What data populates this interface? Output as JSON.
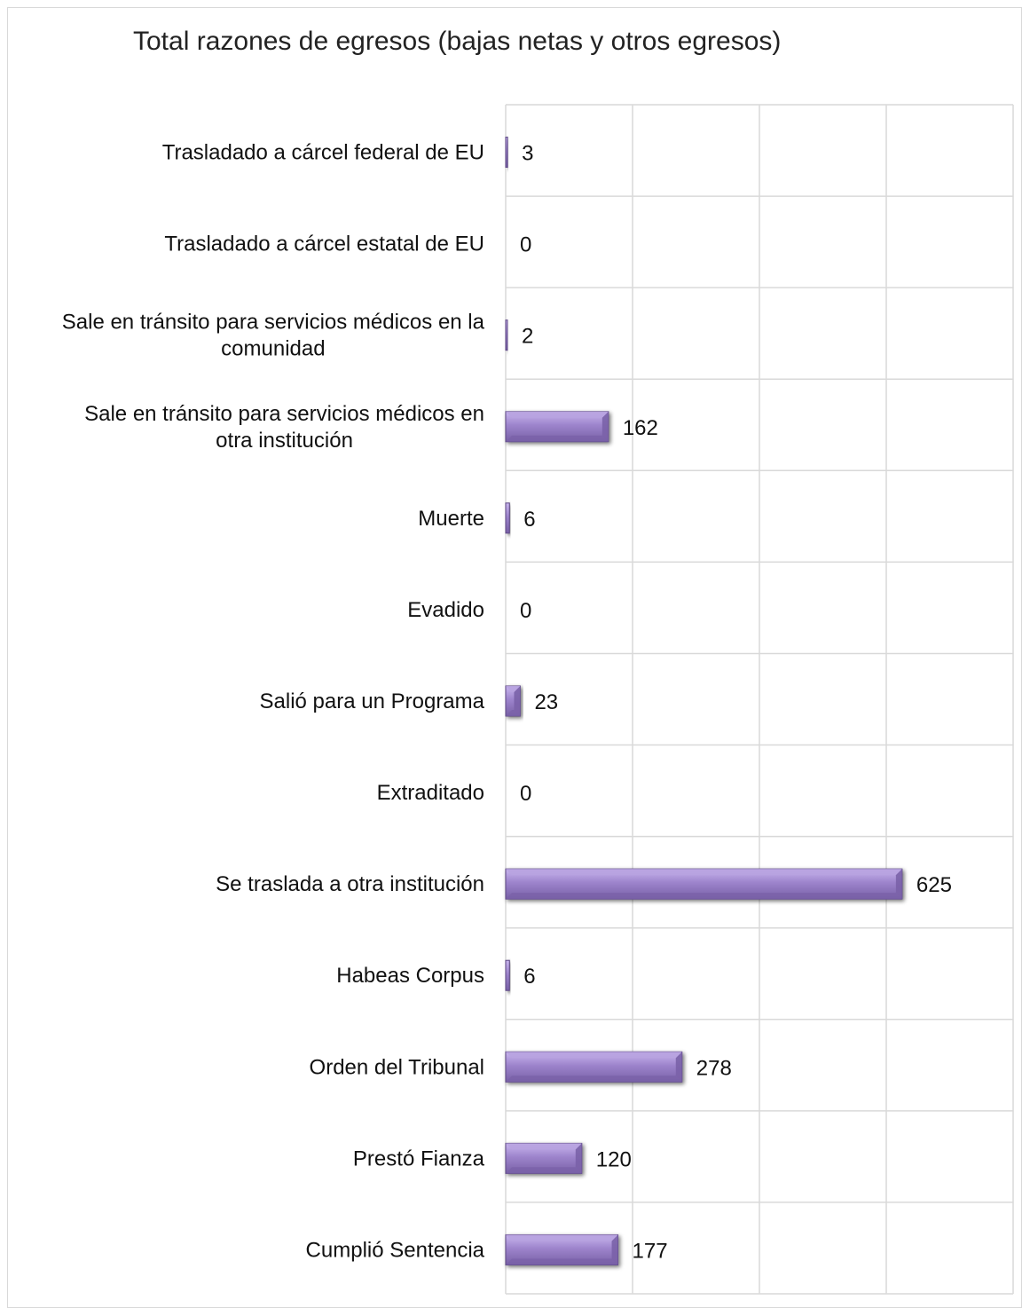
{
  "chart_data": {
    "type": "bar",
    "orientation": "horizontal",
    "title": "Total razones de egresos (bajas netas y otros egresos)",
    "categories": [
      [
        "Trasladado a cárcel federal de EU"
      ],
      [
        "Trasladado a cárcel estatal de EU"
      ],
      [
        "Sale en tránsito para servicios médicos en la",
        "comunidad"
      ],
      [
        "Sale en tránsito para servicios médicos en",
        "otra institución"
      ],
      [
        "Muerte"
      ],
      [
        "Evadido"
      ],
      [
        "Salió para un Programa"
      ],
      [
        "Extraditado"
      ],
      [
        "Se traslada a otra institución"
      ],
      [
        "Habeas Corpus"
      ],
      [
        "Orden del Tribunal"
      ],
      [
        "Prestó Fianza"
      ],
      [
        "Cumplió Sentencia"
      ]
    ],
    "values": [
      3,
      0,
      2,
      162,
      6,
      0,
      23,
      0,
      625,
      6,
      278,
      120,
      177
    ],
    "xlim": [
      0,
      800
    ],
    "grid": true,
    "legend": "none",
    "colors": {
      "bar_top": "#b8a3e0",
      "bar_mid": "#9b82c9",
      "bar_bottom": "#7a62a8",
      "bar_stroke": "#5e4a86",
      "grid": "#d9d9d9"
    }
  }
}
